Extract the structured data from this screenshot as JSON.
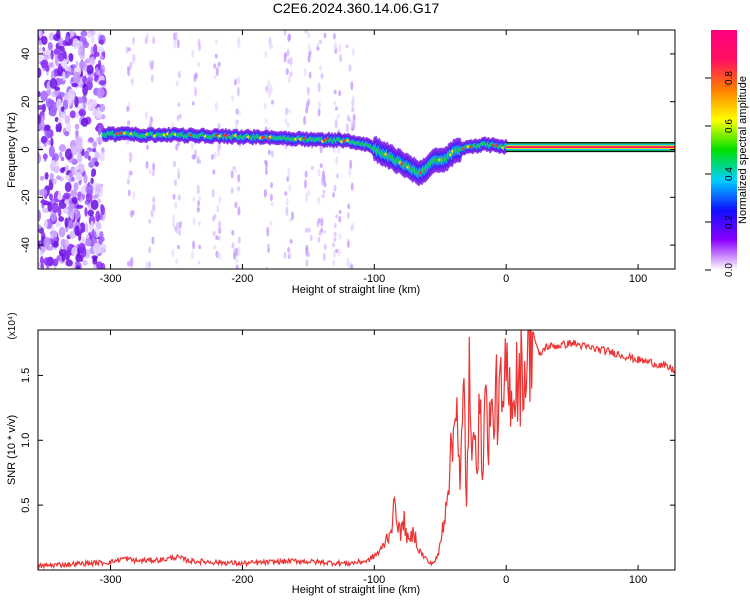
{
  "title": "C2E6.2024.360.14.06.G17",
  "chart_data": [
    {
      "type": "heatmap",
      "name": "spectrogram",
      "xlabel": "Height of straight line (km)",
      "ylabel": "Frequency (Hz)",
      "xlim": [
        -355,
        128
      ],
      "ylim": [
        -50,
        50
      ],
      "xticks": [
        -300,
        -200,
        -100,
        0,
        100
      ],
      "yticks": [
        -40,
        -20,
        0,
        20,
        40
      ],
      "grid": false,
      "ridge": {
        "x": [
          -305,
          -280,
          -250,
          -220,
          -200,
          -180,
          -160,
          -140,
          -120,
          -105,
          -95,
          -85,
          -75,
          -65,
          -55,
          -45,
          -40,
          -35,
          -25,
          -15,
          -5,
          0,
          128
        ],
        "y": [
          6.5,
          6.2,
          6.0,
          5.6,
          5.3,
          5.0,
          4.6,
          4.0,
          3.8,
          2.0,
          -1.0,
          -4.0,
          -7.0,
          -10.0,
          -5.0,
          -4.0,
          -1.0,
          0.0,
          1.5,
          2.0,
          1.5,
          1.0,
          1.0
        ]
      },
      "noise_region_x": [
        -355,
        -305
      ],
      "constant_tone_x": [
        0,
        128
      ],
      "colorbar": {
        "label": "Normalized spectral amplitude",
        "range": [
          0,
          1
        ],
        "ticks": [
          "0.0",
          "0.2",
          "0.4",
          "0.6",
          "0.8"
        ],
        "tick_values": [
          0.0,
          0.2,
          0.4,
          0.6,
          0.8
        ],
        "colors": [
          "#ffffff",
          "#8a00ff",
          "#1010ff",
          "#00d0ff",
          "#00e000",
          "#ffff00",
          "#ff8000",
          "#ff1060",
          "#ff0080"
        ]
      }
    },
    {
      "type": "line",
      "name": "snr",
      "xlabel": "Height of straight line (km)",
      "ylabel": "SNR (10 * v/v)",
      "y_multiplier": "(x10⁴)",
      "xlim": [
        -355,
        128
      ],
      "ylim": [
        0.0,
        1.85
      ],
      "xticks": [
        -300,
        -200,
        -100,
        0,
        100
      ],
      "yticks": [
        0.5,
        1.0,
        1.5
      ],
      "ytick_labels": [
        "0.5",
        "1.0",
        "1.5"
      ],
      "grid": false,
      "color": "#ee3333",
      "series": [
        {
          "x": [
            -355,
            -340,
            -320,
            -300,
            -290,
            -280,
            -260,
            -250,
            -240,
            -220,
            -200,
            -180,
            -160,
            -140,
            -120,
            -105,
            -95,
            -88,
            -84,
            -80,
            -78,
            -74,
            -70,
            -66,
            -62,
            -58,
            -55,
            -52,
            -50,
            -47,
            -44,
            -40,
            -38,
            -35,
            -32,
            -30,
            -28,
            -26,
            -24,
            -22,
            -20,
            -18,
            -16,
            -14,
            -12,
            -10,
            -8,
            -6,
            -4,
            -2,
            0,
            2,
            4,
            6,
            8,
            10,
            12,
            14,
            16,
            18,
            20,
            25,
            30,
            40,
            50,
            60,
            70,
            80,
            90,
            100,
            110,
            120,
            128
          ],
          "y": [
            0.03,
            0.04,
            0.05,
            0.06,
            0.09,
            0.07,
            0.08,
            0.1,
            0.07,
            0.06,
            0.05,
            0.06,
            0.07,
            0.06,
            0.05,
            0.07,
            0.15,
            0.3,
            0.5,
            0.25,
            0.4,
            0.2,
            0.3,
            0.15,
            0.1,
            0.05,
            0.06,
            0.1,
            0.2,
            0.4,
            0.7,
            1.0,
            1.5,
            0.6,
            1.4,
            0.5,
            1.5,
            0.7,
            1.3,
            0.9,
            1.2,
            0.8,
            1.4,
            1.0,
            1.2,
            1.1,
            1.4,
            1.2,
            1.35,
            1.15,
            1.6,
            1.3,
            1.5,
            1.3,
            1.55,
            1.4,
            1.6,
            1.5,
            1.65,
            1.7,
            1.85,
            1.65,
            1.72,
            1.73,
            1.75,
            1.72,
            1.7,
            1.68,
            1.65,
            1.62,
            1.6,
            1.57,
            1.54
          ]
        }
      ]
    }
  ]
}
